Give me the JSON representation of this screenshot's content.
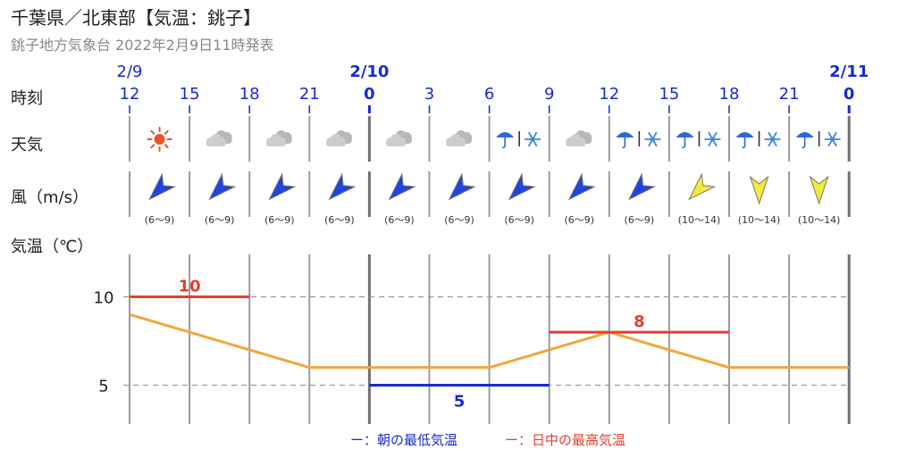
{
  "header": {
    "title": "千葉県／北東部【気温：銚子】",
    "subtitle": "銚子地方気象台 2022年2月9日11時発表"
  },
  "row_labels": {
    "time": "時刻",
    "weather": "天気",
    "wind": "風（m/s）",
    "temp": "気温（℃）"
  },
  "dates": [
    {
      "col": 0,
      "label": "2/9",
      "bold": false
    },
    {
      "col": 4,
      "label": "2/10",
      "bold": true
    },
    {
      "col": 12,
      "label": "2/11",
      "bold": true
    }
  ],
  "hours": [
    {
      "label": "12",
      "bold": false
    },
    {
      "label": "15",
      "bold": false
    },
    {
      "label": "18",
      "bold": false
    },
    {
      "label": "21",
      "bold": false
    },
    {
      "label": "0",
      "bold": true
    },
    {
      "label": "3",
      "bold": false
    },
    {
      "label": "6",
      "bold": false
    },
    {
      "label": "9",
      "bold": false
    },
    {
      "label": "12",
      "bold": false
    },
    {
      "label": "15",
      "bold": false
    },
    {
      "label": "18",
      "bold": false
    },
    {
      "label": "21",
      "bold": false
    },
    {
      "label": "0",
      "bold": true
    }
  ],
  "weather": [
    "sun-icon",
    "cloud-icon",
    "cloud-icon",
    "cloud-icon",
    "cloud-icon",
    "cloud-icon",
    "umbrella-then-snow-icon",
    "cloud-icon",
    "umbrella-then-snow-icon",
    "umbrella-then-snow-icon",
    "umbrella-then-snow-icon",
    "umbrella-then-snow-icon"
  ],
  "wind": [
    {
      "dir": "SW",
      "speed": "(6〜9)",
      "color": "#1f44e0"
    },
    {
      "dir": "SW",
      "speed": "(6〜9)",
      "color": "#1f44e0"
    },
    {
      "dir": "SW",
      "speed": "(6〜9)",
      "color": "#1f44e0"
    },
    {
      "dir": "SW",
      "speed": "(6〜9)",
      "color": "#1f44e0"
    },
    {
      "dir": "SW",
      "speed": "(6〜9)",
      "color": "#1f44e0"
    },
    {
      "dir": "SW",
      "speed": "(6〜9)",
      "color": "#1f44e0"
    },
    {
      "dir": "SW",
      "speed": "(6〜9)",
      "color": "#1f44e0"
    },
    {
      "dir": "SW",
      "speed": "(6〜9)",
      "color": "#1f44e0"
    },
    {
      "dir": "SW",
      "speed": "(6〜9)",
      "color": "#1f44e0"
    },
    {
      "dir": "SW",
      "speed": "(10〜14)",
      "color": "#f4ea3a"
    },
    {
      "dir": "N",
      "speed": "(10〜14)",
      "color": "#f4ea3a"
    },
    {
      "dir": "N",
      "speed": "(10〜14)",
      "color": "#f4ea3a"
    }
  ],
  "legend": {
    "min_label": "ー：朝の最低気温",
    "max_label": "ー：日中の最高気温",
    "min_color": "#1a2ad0",
    "max_color": "#e0402e"
  },
  "chart_data": {
    "type": "line",
    "x": [
      "12",
      "15",
      "18",
      "21",
      "0",
      "3",
      "6",
      "9",
      "12",
      "15",
      "18",
      "21",
      "0"
    ],
    "series": [
      {
        "values": [
          9,
          8,
          7,
          6,
          6,
          6,
          6,
          7,
          8,
          7,
          6,
          6,
          6
        ],
        "color": "#f0a83c"
      }
    ],
    "ticks": [
      10,
      5
    ],
    "ylim": [
      2.8,
      12.4
    ],
    "max_temps": [
      {
        "value": 10,
        "label": "10",
        "from_col": 0,
        "to_col": 2
      },
      {
        "value": 8,
        "label": "8",
        "from_col": 7,
        "to_col": 10
      }
    ],
    "min_temps": [
      {
        "value": 5,
        "label": "5",
        "from_col": 4,
        "to_col": 7
      }
    ],
    "grid": true
  }
}
